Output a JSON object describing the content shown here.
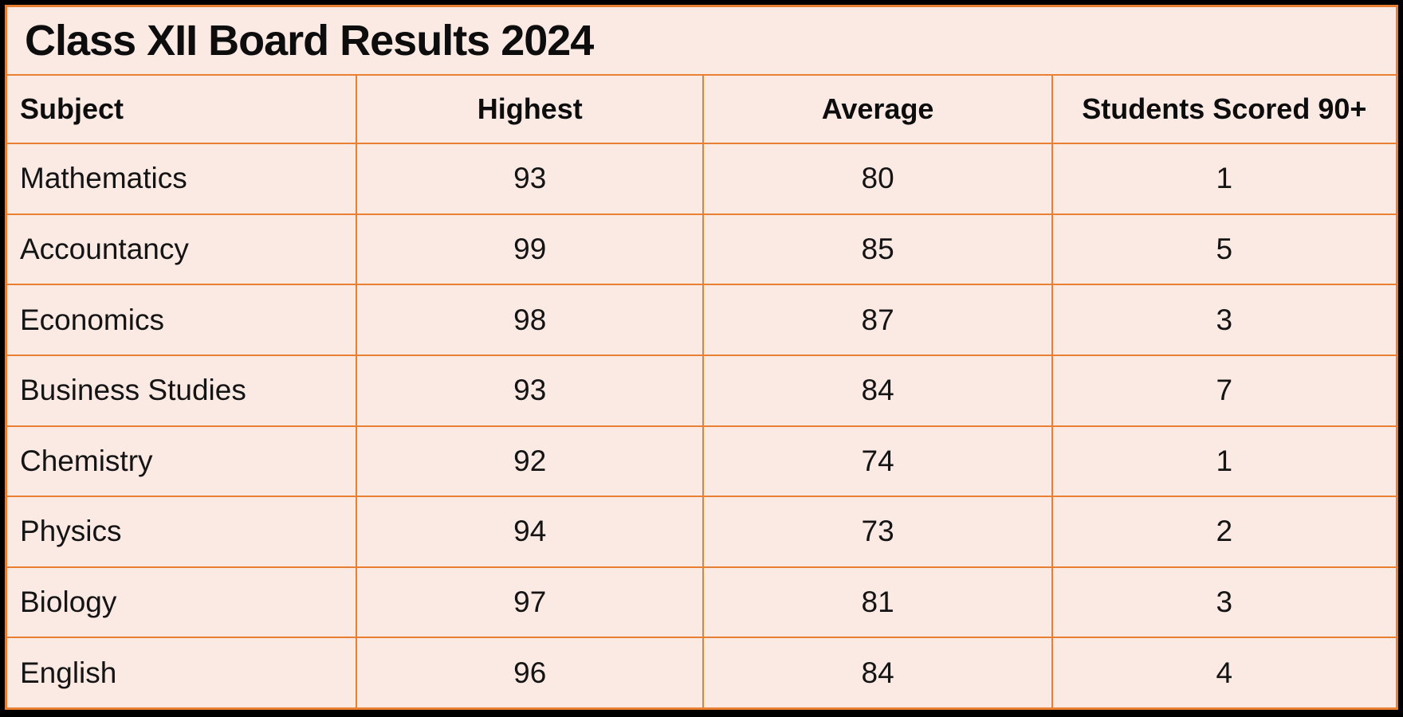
{
  "title": "Class XII Board Results 2024",
  "colors": {
    "background": "#fbe9e4",
    "grid_border": "#e87f33",
    "outer_frame": "#000000",
    "text": "#141414"
  },
  "table": {
    "headers": {
      "subject": "Subject",
      "highest": "Highest",
      "average": "Average",
      "scored90": "Students Scored 90+"
    },
    "rows": [
      {
        "subject": "Mathematics",
        "highest": "93",
        "average": "80",
        "scored90": "1"
      },
      {
        "subject": "Accountancy",
        "highest": "99",
        "average": "85",
        "scored90": "5"
      },
      {
        "subject": "Economics",
        "highest": "98",
        "average": "87",
        "scored90": "3"
      },
      {
        "subject": "Business Studies",
        "highest": "93",
        "average": "84",
        "scored90": "7"
      },
      {
        "subject": "Chemistry",
        "highest": "92",
        "average": "74",
        "scored90": "1"
      },
      {
        "subject": "Physics",
        "highest": "94",
        "average": "73",
        "scored90": "2"
      },
      {
        "subject": "Biology",
        "highest": "97",
        "average": "81",
        "scored90": "3"
      },
      {
        "subject": "English",
        "highest": "96",
        "average": "84",
        "scored90": "4"
      }
    ]
  },
  "chart_data": {
    "type": "table",
    "title": "Class XII Board Results 2024",
    "columns": [
      "Subject",
      "Highest",
      "Average",
      "Students Scored 90+"
    ],
    "rows": [
      [
        "Mathematics",
        93,
        80,
        1
      ],
      [
        "Accountancy",
        99,
        85,
        5
      ],
      [
        "Economics",
        98,
        87,
        3
      ],
      [
        "Business Studies",
        93,
        84,
        7
      ],
      [
        "Chemistry",
        92,
        74,
        1
      ],
      [
        "Physics",
        94,
        73,
        2
      ],
      [
        "Biology",
        97,
        81,
        3
      ],
      [
        "English",
        96,
        84,
        4
      ]
    ]
  }
}
